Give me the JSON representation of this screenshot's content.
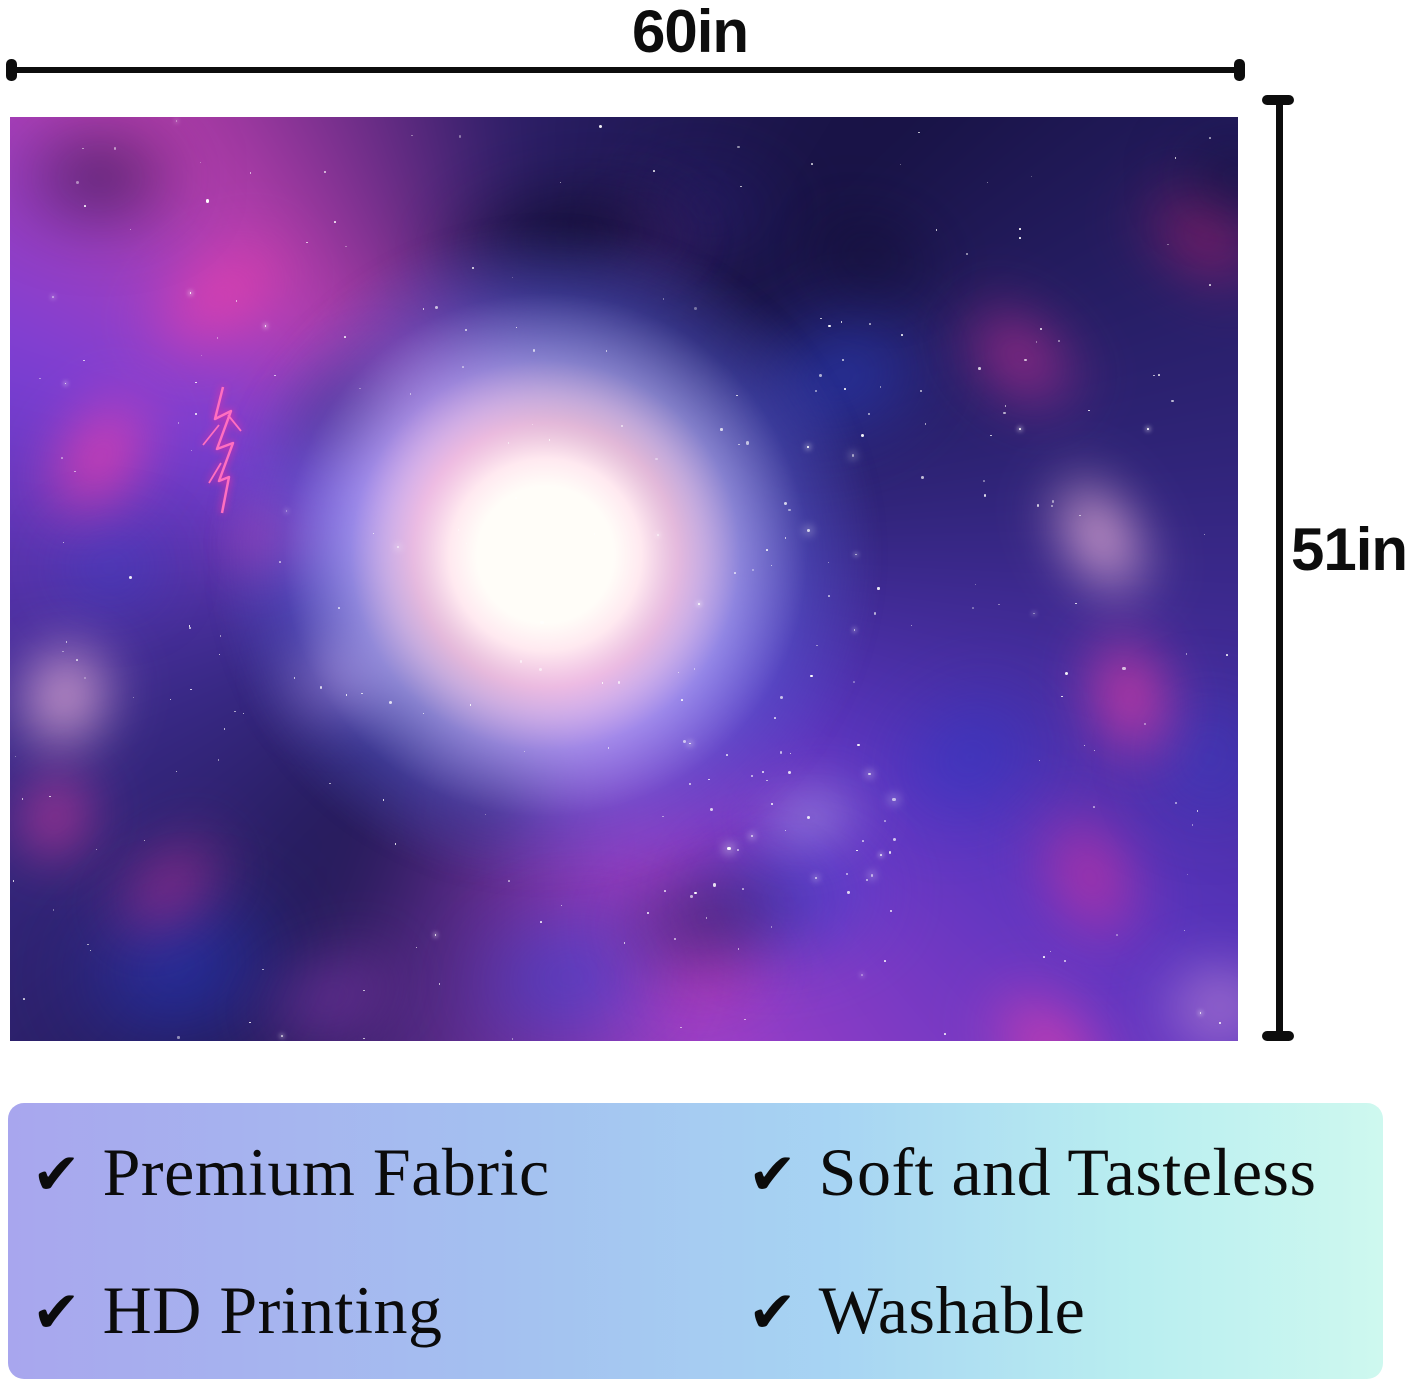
{
  "page": {
    "background": "#ffffff"
  },
  "dimension_annotations": {
    "width": {
      "label": "60in"
    },
    "height": {
      "label": "51in"
    },
    "line_color": "#0d0d0d"
  },
  "product_image": {
    "alt": "Galaxy wormhole space vortex backdrop with pink and blue nebula swirls, stars and a bright white core",
    "palette": {
      "base": "#171243",
      "deep_navy": "#0d0a2a",
      "indigo": "#2a2080",
      "royal_blue": "#2238c8",
      "bright_blue": "#2a46d8",
      "violet": "#7b3fd6",
      "purple": "#a040c8",
      "magenta": "#e0319d",
      "hot_pink": "#ff3fa8",
      "crimson": "#d81f6f",
      "light_pink": "#ffc2e2",
      "pale_blue": "#cfd8ff",
      "core_white": "#fffaf4",
      "lightning_pink": "#ff6fc0"
    }
  },
  "features_banner": {
    "check_glyph": "✔",
    "background_gradient": [
      "#a8a6ee",
      "#a7d4f3",
      "#cef8ef"
    ],
    "items": [
      {
        "label": "Premium Fabric"
      },
      {
        "label": "Soft and Tasteless"
      },
      {
        "label": "HD Printing"
      },
      {
        "label": "Washable"
      }
    ]
  }
}
